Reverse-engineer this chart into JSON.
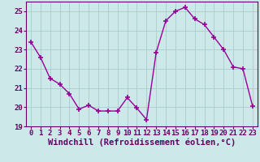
{
  "x": [
    0,
    1,
    2,
    3,
    4,
    5,
    6,
    7,
    8,
    9,
    10,
    11,
    12,
    13,
    14,
    15,
    16,
    17,
    18,
    19,
    20,
    21,
    22,
    23
  ],
  "y": [
    23.4,
    22.6,
    21.5,
    21.2,
    20.7,
    19.9,
    20.1,
    19.8,
    19.8,
    19.8,
    20.5,
    19.95,
    19.35,
    22.85,
    24.5,
    25.0,
    25.2,
    24.6,
    24.3,
    23.65,
    23.0,
    22.1,
    22.0,
    20.05
  ],
  "line_color": "#990099",
  "marker": "+",
  "markersize": 4,
  "markeredgewidth": 1.2,
  "bg_color": "#cce8e8",
  "grid_color": "#aacccc",
  "xlabel": "Windchill (Refroidissement éolien,°C)",
  "ylim": [
    19,
    25.5
  ],
  "yticks": [
    19,
    20,
    21,
    22,
    23,
    24,
    25
  ],
  "xticks": [
    0,
    1,
    2,
    3,
    4,
    5,
    6,
    7,
    8,
    9,
    10,
    11,
    12,
    13,
    14,
    15,
    16,
    17,
    18,
    19,
    20,
    21,
    22,
    23
  ],
  "text_color": "#660066",
  "xlabel_fontsize": 7.5,
  "tick_fontsize": 6.5,
  "linewidth": 1.0
}
